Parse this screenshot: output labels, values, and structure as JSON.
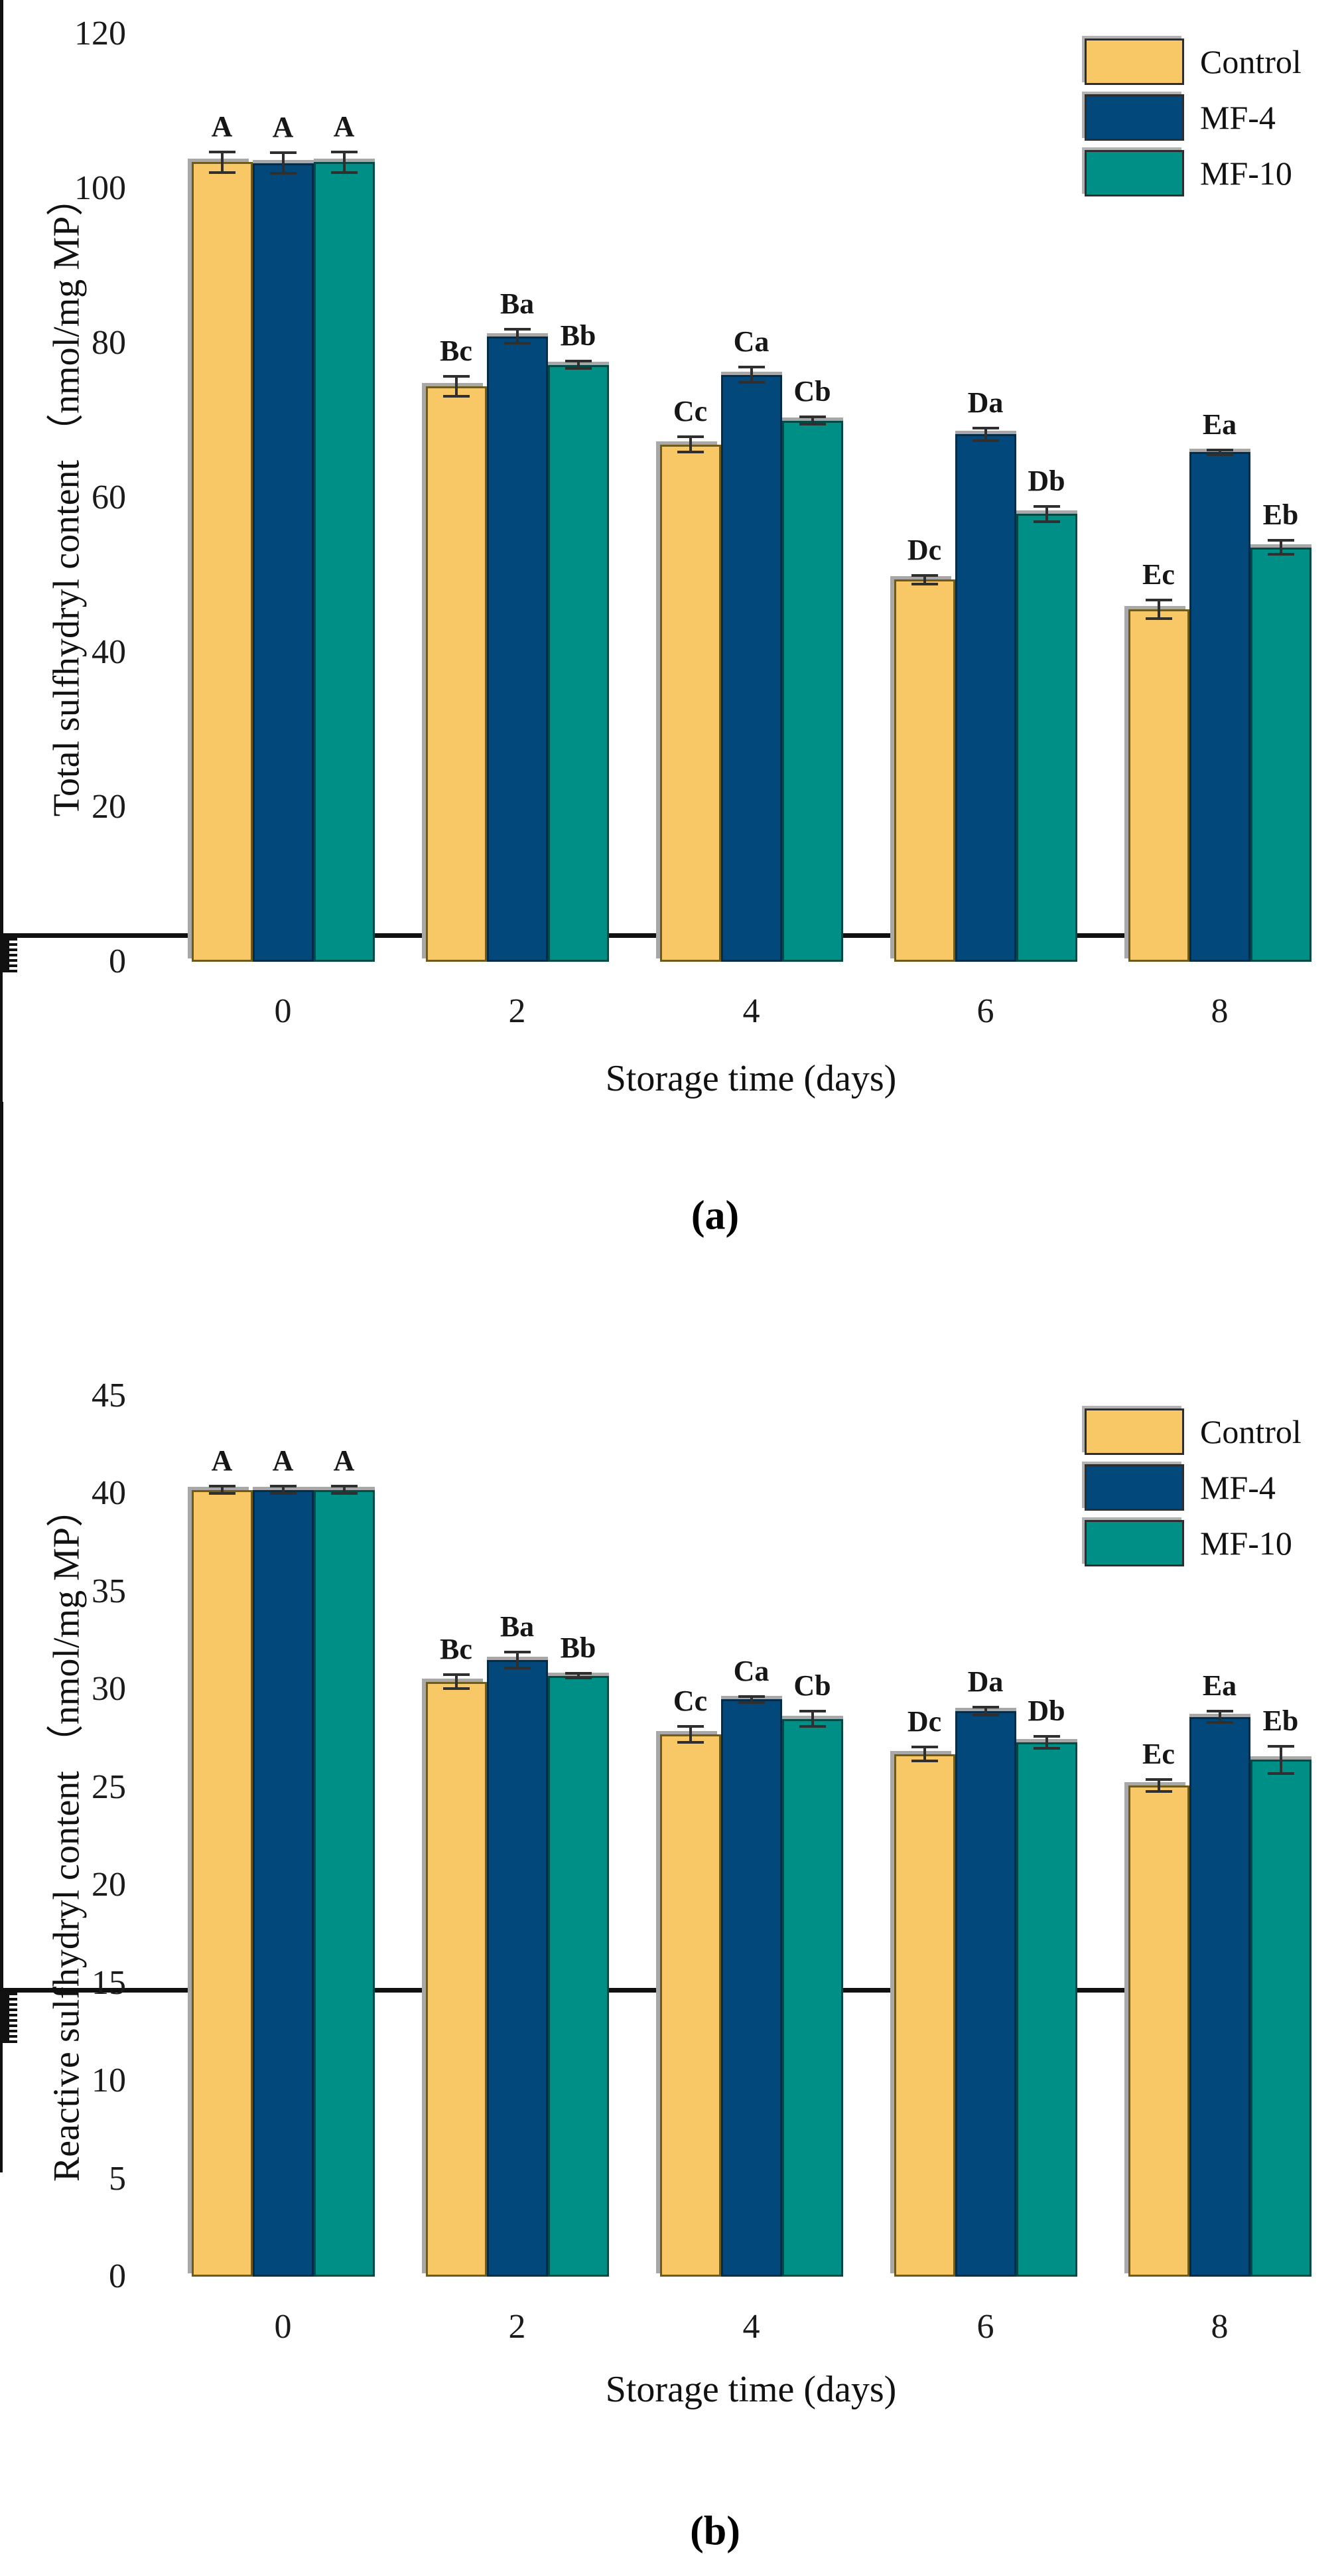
{
  "figure": {
    "background": "#ffffff",
    "shadow_color": "#a8a8a8",
    "axis_color": "#111111",
    "error_bar_color": "#2f2f2f"
  },
  "chart_data": [
    {
      "type": "bar",
      "panel": "a",
      "caption": "(a)",
      "title": "",
      "xlabel": "Storage time (days)",
      "ylabel": "Total sulfhydryl content （nmol/mg MP）",
      "categories": [
        "0",
        "2",
        "4",
        "6",
        "8"
      ],
      "ylim": [
        0,
        120
      ],
      "y_major_step": 20,
      "y_minor_step": 10,
      "grid": false,
      "legend_position": "top-right-inside",
      "series": [
        {
          "name": "Control",
          "fill": "#F8C766",
          "border": "#6f5a17",
          "values": [
            103.4,
            74.4,
            66.9,
            49.4,
            45.6
          ],
          "errors": [
            1.3,
            1.3,
            1.0,
            0.6,
            1.2
          ],
          "sig_labels": [
            "A",
            "Bc",
            "Cc",
            "Dc",
            "Ec"
          ]
        },
        {
          "name": "MF-4",
          "fill": "#03487A",
          "border": "#032b4a",
          "values": [
            103.3,
            80.9,
            75.9,
            68.2,
            65.9
          ],
          "errors": [
            1.3,
            0.9,
            1.0,
            0.8,
            0.3
          ],
          "sig_labels": [
            "A",
            "Ba",
            "Ca",
            "Da",
            "Ea"
          ]
        },
        {
          "name": "MF-10",
          "fill": "#008F87",
          "border": "#014b47",
          "values": [
            103.4,
            77.2,
            70.0,
            57.9,
            53.6
          ],
          "errors": [
            1.3,
            0.5,
            0.5,
            1.0,
            0.9
          ],
          "sig_labels": [
            "A",
            "Bb",
            "Cb",
            "Db",
            "Eb"
          ]
        }
      ]
    },
    {
      "type": "bar",
      "panel": "b",
      "caption": "(b)",
      "title": "",
      "xlabel": "Storage time (days)",
      "ylabel": "Reactive sulfhydryl content （nmol/mg MP）",
      "categories": [
        "0",
        "2",
        "4",
        "6",
        "8"
      ],
      "ylim": [
        0,
        45
      ],
      "y_major_step": 5,
      "y_minor_step": 2.5,
      "grid": false,
      "legend_position": "top-right-inside",
      "series": [
        {
          "name": "Control",
          "fill": "#F8C766",
          "border": "#6f5a17",
          "values": [
            40.2,
            30.4,
            27.7,
            26.7,
            25.1
          ],
          "errors": [
            0.2,
            0.35,
            0.4,
            0.35,
            0.3
          ],
          "sig_labels": [
            "A",
            "Bc",
            "Cc",
            "Dc",
            "Ec"
          ]
        },
        {
          "name": "MF-4",
          "fill": "#03487A",
          "border": "#032b4a",
          "values": [
            40.2,
            31.5,
            29.5,
            28.9,
            28.6
          ],
          "errors": [
            0.2,
            0.4,
            0.15,
            0.2,
            0.3
          ],
          "sig_labels": [
            "A",
            "Ba",
            "Ca",
            "Da",
            "Ea"
          ]
        },
        {
          "name": "MF-10",
          "fill": "#008F87",
          "border": "#014b47",
          "values": [
            40.2,
            30.7,
            28.5,
            27.3,
            26.4
          ],
          "errors": [
            0.2,
            0.12,
            0.4,
            0.3,
            0.7
          ],
          "sig_labels": [
            "A",
            "Bb",
            "Cb",
            "Db",
            "Eb"
          ]
        }
      ]
    }
  ]
}
